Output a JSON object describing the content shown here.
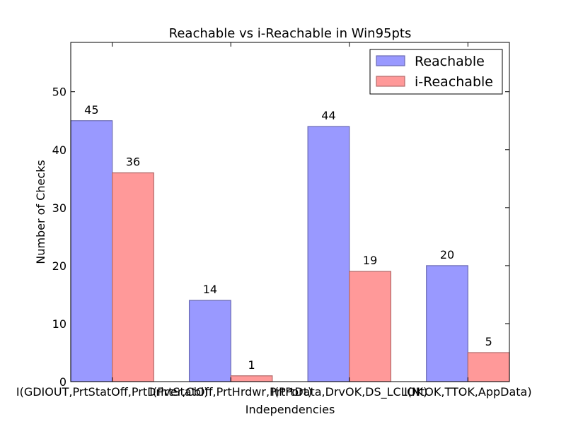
{
  "chart_data": {
    "type": "bar",
    "title": "Reachable vs i-Reachable in Win95pts",
    "xlabel": "Independencies",
    "ylabel": "Number of Checks",
    "ylim": [
      0,
      58.5
    ],
    "yticks": [
      0,
      10,
      20,
      30,
      40,
      50
    ],
    "categories": [
      "I(GDIOUT,PrtStatOff,PrtDriver,Cbl)",
      "I(PrtStatOff,PrtHrdwr,PrtPort)",
      "I(PrtData,DrvOK,DS_LCLOK)",
      "I(NtOK,TTOK,AppData)"
    ],
    "series": [
      {
        "name": "Reachable",
        "values": [
          45,
          14,
          44,
          20
        ],
        "color": "#9999ff",
        "edge": "#6b6bb3"
      },
      {
        "name": "i-Reachable",
        "values": [
          36,
          1,
          19,
          5
        ],
        "color": "#ff9999",
        "edge": "#b36b6b"
      }
    ],
    "legend": "top-right",
    "grid": false
  }
}
